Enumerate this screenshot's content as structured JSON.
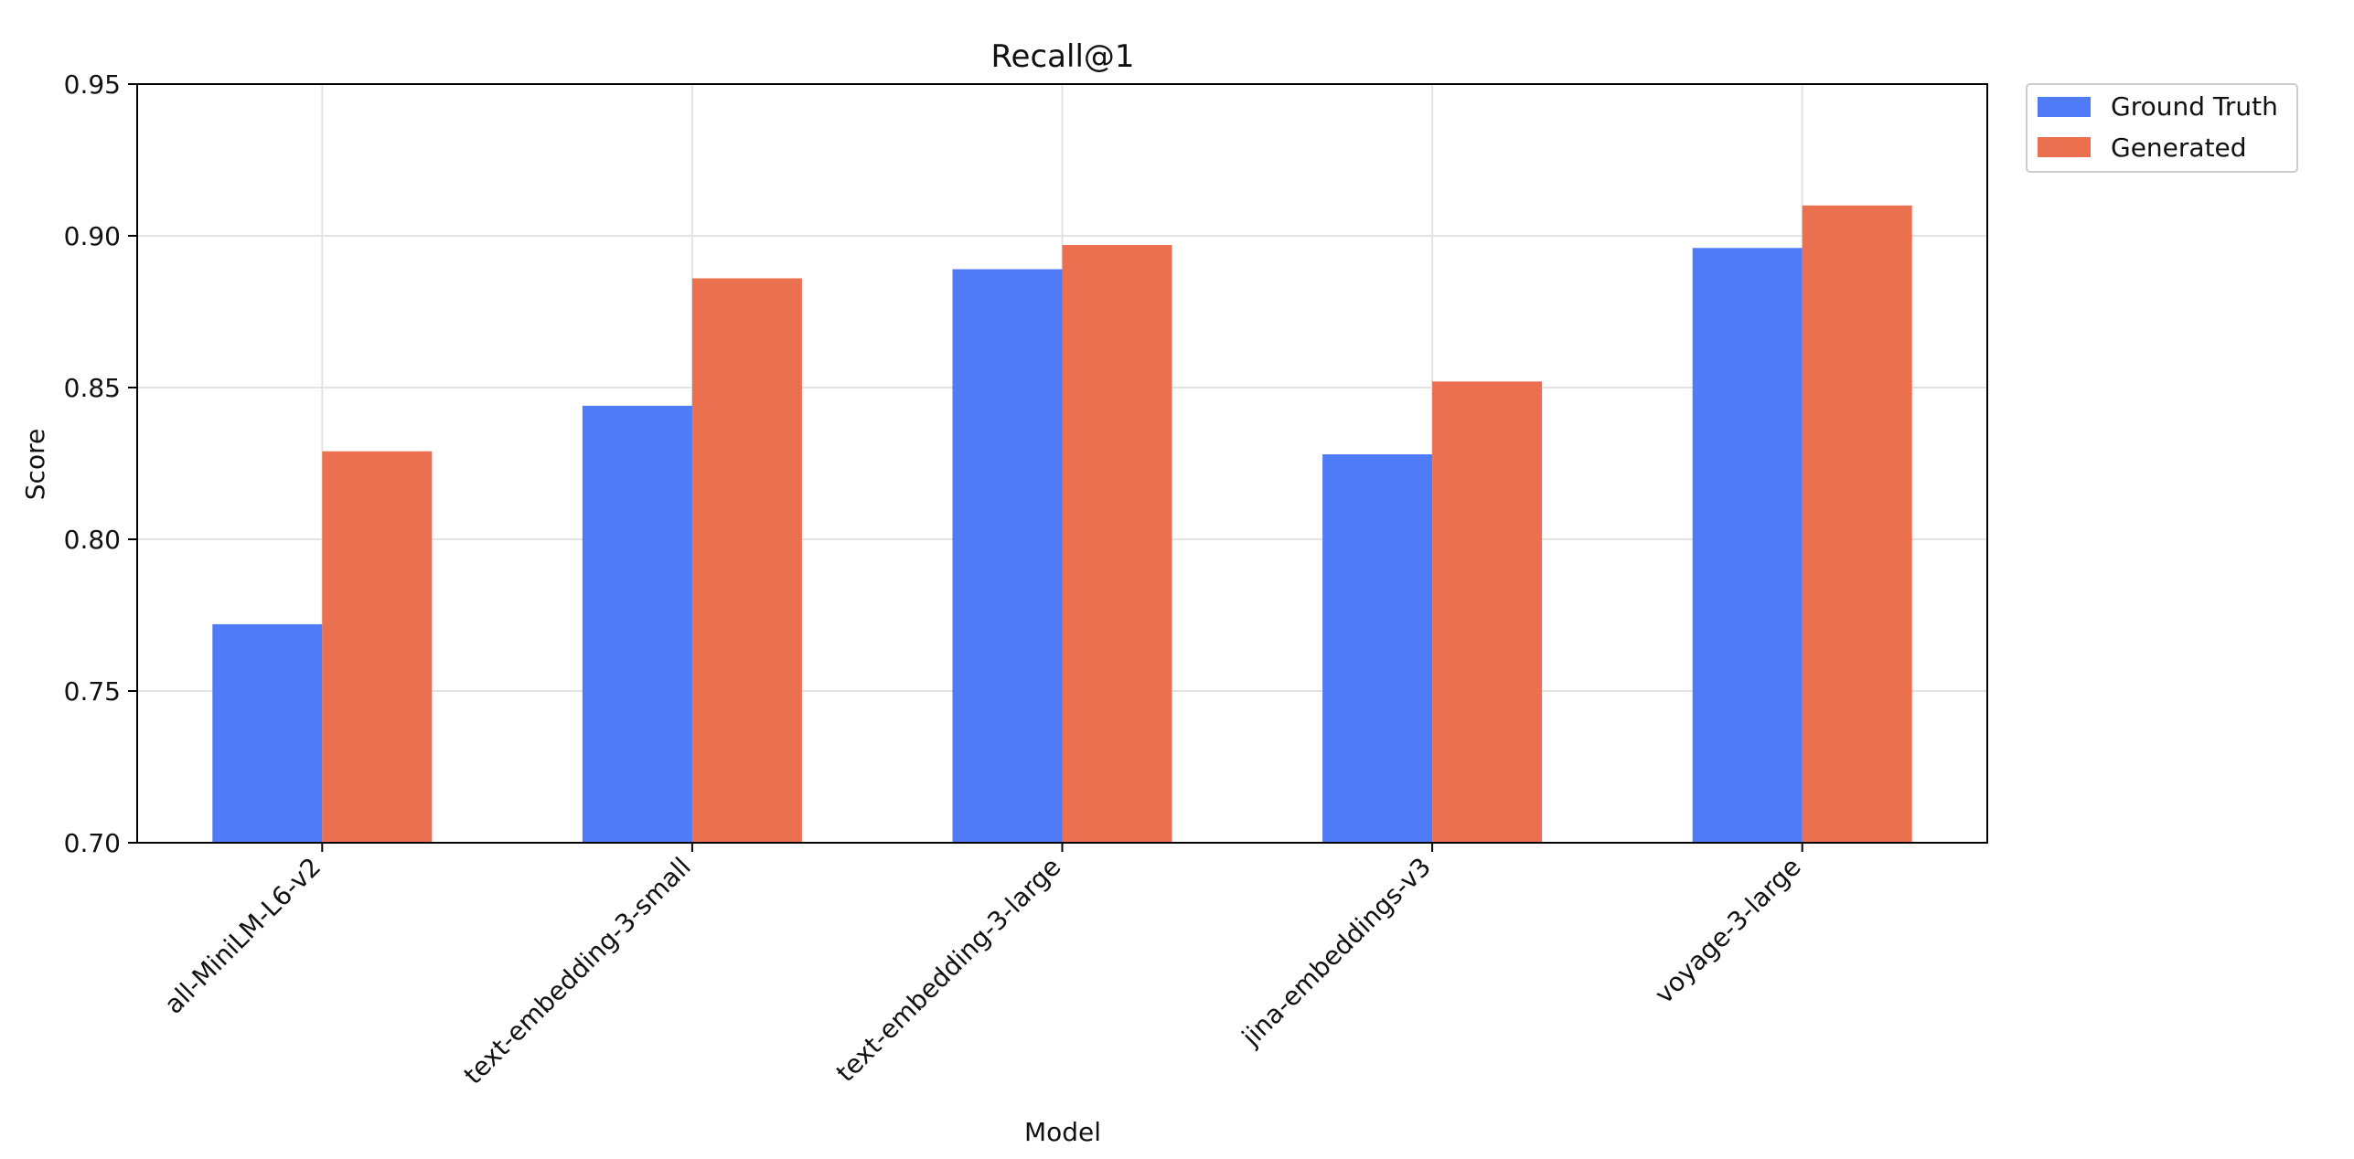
{
  "chart_data": {
    "type": "bar",
    "title": "Recall@1",
    "xlabel": "Model",
    "ylabel": "Score",
    "ylim": [
      0.7,
      0.95
    ],
    "yticks": [
      "0.70",
      "0.75",
      "0.80",
      "0.85",
      "0.90",
      "0.95"
    ],
    "grid": true,
    "legend_position": "outside-top-right",
    "categories": [
      "all-MiniLM-L6-v2",
      "text-embedding-3-small",
      "text-embedding-3-large",
      "jina-embeddings-v3",
      "voyage-3-large"
    ],
    "series": [
      {
        "name": "Ground Truth",
        "color": "#4f7bf7",
        "values": [
          0.772,
          0.844,
          0.889,
          0.828,
          0.896
        ]
      },
      {
        "name": "Generated",
        "color": "#eb7050",
        "values": [
          0.829,
          0.886,
          0.897,
          0.852,
          0.91
        ]
      }
    ]
  }
}
